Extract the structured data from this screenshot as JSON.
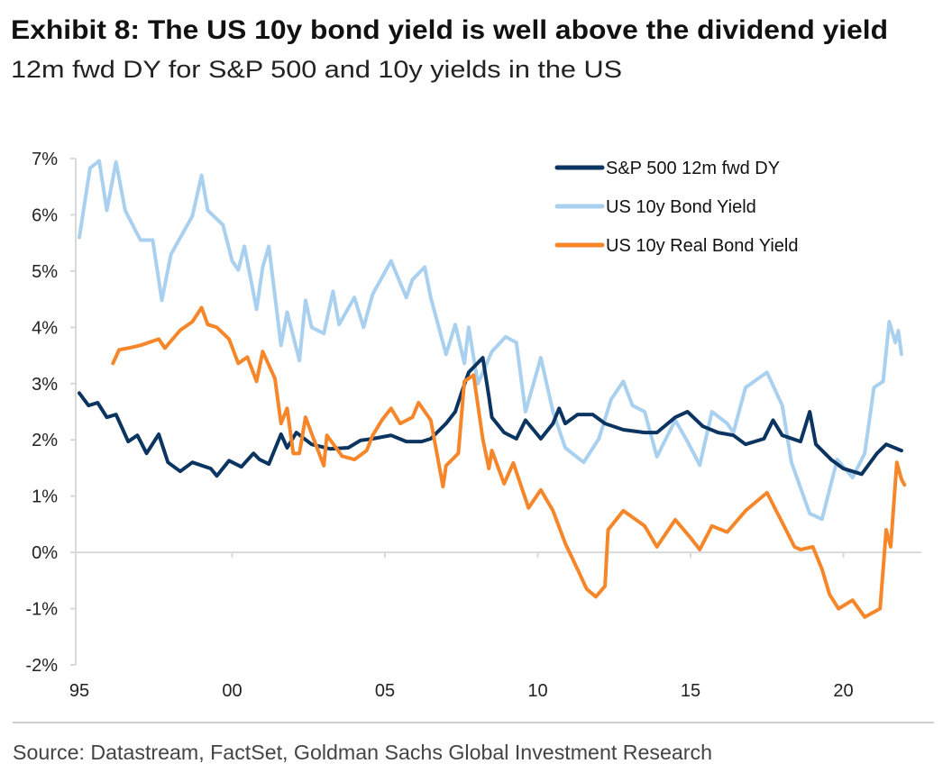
{
  "title": "Exhibit 8: The US 10y bond yield is well above the dividend yield",
  "subtitle": "12m fwd DY for S&P 500 and 10y yields in the US",
  "source": "Source: Datastream, FactSet, Goldman Sachs Global Investment Research",
  "chart_data": {
    "type": "line",
    "title": "Exhibit 8: The US 10y bond yield is well above the dividend yield",
    "xlabel": "",
    "ylabel": "",
    "xlim": [
      1995,
      2022
    ],
    "ylim": [
      -2,
      7
    ],
    "grid": false,
    "legend_position": "top-right",
    "x_ticks": [
      {
        "value": 1995,
        "label": "95"
      },
      {
        "value": 2000,
        "label": "00"
      },
      {
        "value": 2005,
        "label": "05"
      },
      {
        "value": 2010,
        "label": "10"
      },
      {
        "value": 2015,
        "label": "15"
      },
      {
        "value": 2020,
        "label": "20"
      }
    ],
    "y_ticks": [
      {
        "value": 7,
        "label": "7%"
      },
      {
        "value": 6,
        "label": "6%"
      },
      {
        "value": 5,
        "label": "5%"
      },
      {
        "value": 4,
        "label": "4%"
      },
      {
        "value": 3,
        "label": "3%"
      },
      {
        "value": 2,
        "label": "2%"
      },
      {
        "value": 1,
        "label": "1%"
      },
      {
        "value": 0,
        "label": "0%"
      },
      {
        "value": -1,
        "label": "-1%"
      },
      {
        "value": -2,
        "label": "-2%"
      }
    ],
    "series": [
      {
        "name": "S&P 500 12m fwd DY",
        "color": "#0b3560",
        "points": [
          [
            1995.0,
            2.83
          ],
          [
            1995.3,
            2.61
          ],
          [
            1995.6,
            2.66
          ],
          [
            1995.9,
            2.4
          ],
          [
            1996.2,
            2.45
          ],
          [
            1996.6,
            1.97
          ],
          [
            1996.9,
            2.08
          ],
          [
            1997.2,
            1.76
          ],
          [
            1997.6,
            2.1
          ],
          [
            1997.9,
            1.6
          ],
          [
            1998.3,
            1.44
          ],
          [
            1998.7,
            1.6
          ],
          [
            1999.3,
            1.49
          ],
          [
            1999.5,
            1.36
          ],
          [
            1999.9,
            1.63
          ],
          [
            2000.3,
            1.52
          ],
          [
            2000.7,
            1.76
          ],
          [
            2000.9,
            1.65
          ],
          [
            2001.2,
            1.57
          ],
          [
            2001.6,
            2.1
          ],
          [
            2001.8,
            1.86
          ],
          [
            2002.1,
            2.13
          ],
          [
            2002.6,
            1.92
          ],
          [
            2003.2,
            1.84
          ],
          [
            2003.8,
            1.86
          ],
          [
            2004.2,
            1.99
          ],
          [
            2004.6,
            2.02
          ],
          [
            2005.2,
            2.08
          ],
          [
            2005.7,
            1.97
          ],
          [
            2006.2,
            1.97
          ],
          [
            2006.5,
            2.02
          ],
          [
            2007.0,
            2.29
          ],
          [
            2007.3,
            2.5
          ],
          [
            2007.5,
            2.83
          ],
          [
            2007.74,
            3.2
          ],
          [
            2008.2,
            3.46
          ],
          [
            2008.4,
            2.77
          ],
          [
            2008.5,
            2.4
          ],
          [
            2008.9,
            2.13
          ],
          [
            2009.3,
            2.02
          ],
          [
            2009.6,
            2.35
          ],
          [
            2010.1,
            2.02
          ],
          [
            2010.5,
            2.29
          ],
          [
            2010.7,
            2.56
          ],
          [
            2010.9,
            2.29
          ],
          [
            2011.3,
            2.45
          ],
          [
            2011.8,
            2.45
          ],
          [
            2012.2,
            2.29
          ],
          [
            2012.8,
            2.18
          ],
          [
            2013.5,
            2.13
          ],
          [
            2013.9,
            2.13
          ],
          [
            2014.5,
            2.4
          ],
          [
            2014.9,
            2.5
          ],
          [
            2015.4,
            2.24
          ],
          [
            2015.9,
            2.13
          ],
          [
            2016.4,
            2.08
          ],
          [
            2016.8,
            1.92
          ],
          [
            2017.4,
            2.02
          ],
          [
            2017.7,
            2.35
          ],
          [
            2018.0,
            2.08
          ],
          [
            2018.6,
            1.97
          ],
          [
            2018.9,
            2.5
          ],
          [
            2019.1,
            1.92
          ],
          [
            2019.6,
            1.65
          ],
          [
            2020.0,
            1.49
          ],
          [
            2020.6,
            1.39
          ],
          [
            2021.1,
            1.76
          ],
          [
            2021.4,
            1.92
          ],
          [
            2021.9,
            1.81
          ]
        ]
      },
      {
        "name": "US 10y Bond Yield",
        "color": "#a9d0ef",
        "points": [
          [
            1995.0,
            5.6
          ],
          [
            1995.35,
            6.83
          ],
          [
            1995.65,
            6.96
          ],
          [
            1995.9,
            6.08
          ],
          [
            1996.2,
            6.94
          ],
          [
            1996.5,
            6.08
          ],
          [
            1997.0,
            5.55
          ],
          [
            1997.4,
            5.55
          ],
          [
            1997.7,
            4.48
          ],
          [
            1998.0,
            5.3
          ],
          [
            1998.7,
            5.98
          ],
          [
            1999.0,
            6.7
          ],
          [
            1999.2,
            6.08
          ],
          [
            1999.7,
            5.82
          ],
          [
            2000.0,
            5.18
          ],
          [
            2000.2,
            5.02
          ],
          [
            2000.4,
            5.44
          ],
          [
            2000.8,
            4.32
          ],
          [
            2001.0,
            5.07
          ],
          [
            2001.2,
            5.44
          ],
          [
            2001.6,
            3.68
          ],
          [
            2001.8,
            4.27
          ],
          [
            2002.2,
            3.41
          ],
          [
            2002.4,
            4.48
          ],
          [
            2002.6,
            4.0
          ],
          [
            2003.0,
            3.89
          ],
          [
            2003.3,
            4.64
          ],
          [
            2003.5,
            4.05
          ],
          [
            2004.0,
            4.53
          ],
          [
            2004.3,
            4.0
          ],
          [
            2004.6,
            4.59
          ],
          [
            2005.2,
            5.18
          ],
          [
            2005.7,
            4.53
          ],
          [
            2005.9,
            4.85
          ],
          [
            2006.3,
            5.07
          ],
          [
            2006.5,
            4.53
          ],
          [
            2007.0,
            3.52
          ],
          [
            2007.3,
            4.05
          ],
          [
            2007.6,
            3.36
          ],
          [
            2007.74,
            4.0
          ],
          [
            2008.04,
            3.0
          ],
          [
            2008.5,
            3.57
          ],
          [
            2008.95,
            3.83
          ],
          [
            2009.3,
            3.73
          ],
          [
            2009.6,
            2.5
          ],
          [
            2010.1,
            3.46
          ],
          [
            2010.5,
            2.5
          ],
          [
            2010.9,
            1.86
          ],
          [
            2011.5,
            1.6
          ],
          [
            2012.0,
            2.02
          ],
          [
            2012.4,
            2.72
          ],
          [
            2012.8,
            3.04
          ],
          [
            2013.1,
            2.61
          ],
          [
            2013.5,
            2.5
          ],
          [
            2013.9,
            1.7
          ],
          [
            2014.5,
            2.35
          ],
          [
            2014.9,
            1.97
          ],
          [
            2015.3,
            1.55
          ],
          [
            2015.7,
            2.5
          ],
          [
            2016.2,
            2.29
          ],
          [
            2016.4,
            2.13
          ],
          [
            2016.8,
            2.93
          ],
          [
            2017.5,
            3.2
          ],
          [
            2018.0,
            2.61
          ],
          [
            2018.3,
            1.6
          ],
          [
            2018.9,
            0.69
          ],
          [
            2019.3,
            0.59
          ],
          [
            2019.8,
            1.65
          ],
          [
            2020.3,
            1.33
          ],
          [
            2020.7,
            1.76
          ],
          [
            2021.0,
            2.93
          ],
          [
            2021.3,
            3.04
          ],
          [
            2021.5,
            4.1
          ],
          [
            2021.7,
            3.73
          ],
          [
            2021.8,
            3.94
          ],
          [
            2021.9,
            3.52
          ]
        ]
      },
      {
        "name": "US 10y Real Bond Yield",
        "color": "#f5862a",
        "points": [
          [
            1996.1,
            3.36
          ],
          [
            1996.3,
            3.6
          ],
          [
            1996.6,
            3.63
          ],
          [
            1997.0,
            3.68
          ],
          [
            1997.6,
            3.79
          ],
          [
            1997.8,
            3.63
          ],
          [
            1998.3,
            3.95
          ],
          [
            1998.7,
            4.1
          ],
          [
            1999.0,
            4.35
          ],
          [
            1999.2,
            4.05
          ],
          [
            1999.5,
            4.0
          ],
          [
            1999.9,
            3.79
          ],
          [
            2000.2,
            3.36
          ],
          [
            2000.5,
            3.47
          ],
          [
            2000.8,
            3.04
          ],
          [
            2001.0,
            3.57
          ],
          [
            2001.4,
            3.09
          ],
          [
            2001.6,
            2.29
          ],
          [
            2001.8,
            2.56
          ],
          [
            2002.0,
            1.76
          ],
          [
            2002.2,
            1.76
          ],
          [
            2002.4,
            2.4
          ],
          [
            2002.7,
            1.97
          ],
          [
            2003.0,
            1.54
          ],
          [
            2003.1,
            2.08
          ],
          [
            2003.6,
            1.71
          ],
          [
            2004.0,
            1.65
          ],
          [
            2004.4,
            1.81
          ],
          [
            2004.6,
            2.08
          ],
          [
            2004.9,
            2.35
          ],
          [
            2005.2,
            2.56
          ],
          [
            2005.5,
            2.29
          ],
          [
            2005.9,
            2.4
          ],
          [
            2006.1,
            2.66
          ],
          [
            2006.5,
            2.35
          ],
          [
            2006.7,
            1.76
          ],
          [
            2006.9,
            1.17
          ],
          [
            2007.0,
            1.54
          ],
          [
            2007.4,
            1.76
          ],
          [
            2007.6,
            3.04
          ],
          [
            2007.9,
            3.15
          ],
          [
            2008.2,
            2.02
          ],
          [
            2008.4,
            1.49
          ],
          [
            2008.5,
            1.81
          ],
          [
            2008.9,
            1.22
          ],
          [
            2009.2,
            1.59
          ],
          [
            2009.7,
            0.79
          ],
          [
            2010.1,
            1.11
          ],
          [
            2010.5,
            0.74
          ],
          [
            2010.9,
            0.16
          ],
          [
            2011.3,
            -0.3
          ],
          [
            2011.6,
            -0.65
          ],
          [
            2011.9,
            -0.79
          ],
          [
            2012.2,
            -0.6
          ],
          [
            2012.3,
            0.4
          ],
          [
            2012.8,
            0.74
          ],
          [
            2013.5,
            0.47
          ],
          [
            2013.9,
            0.1
          ],
          [
            2014.5,
            0.58
          ],
          [
            2015.0,
            0.26
          ],
          [
            2015.3,
            0.05
          ],
          [
            2015.7,
            0.47
          ],
          [
            2016.2,
            0.36
          ],
          [
            2016.8,
            0.74
          ],
          [
            2017.5,
            1.06
          ],
          [
            2018.0,
            0.53
          ],
          [
            2018.4,
            0.1
          ],
          [
            2018.6,
            0.05
          ],
          [
            2019.0,
            0.1
          ],
          [
            2019.3,
            -0.3
          ],
          [
            2019.55,
            -0.75
          ],
          [
            2019.84,
            -1.0
          ],
          [
            2020.3,
            -0.85
          ],
          [
            2020.7,
            -1.15
          ],
          [
            2021.2,
            -1.0
          ],
          [
            2021.4,
            0.4
          ],
          [
            2021.55,
            0.1
          ],
          [
            2021.75,
            1.6
          ],
          [
            2021.9,
            1.3
          ],
          [
            2022.0,
            1.2
          ]
        ]
      }
    ]
  }
}
